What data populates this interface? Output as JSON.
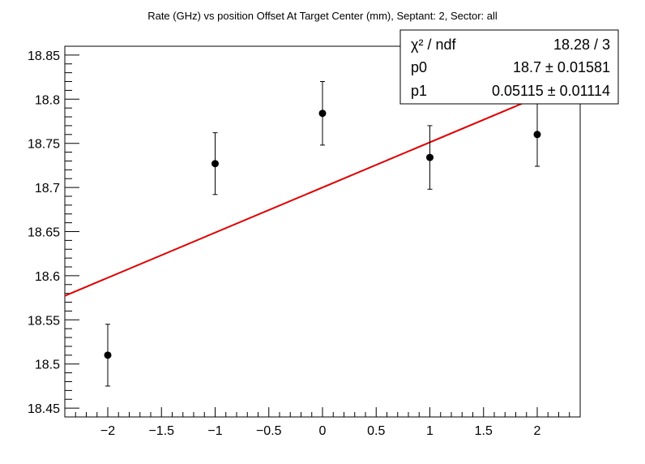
{
  "chart_data": {
    "type": "scatter",
    "title": "Rate (GHz) vs position Offset At Target Center (mm), Septant: 2, Sector: all",
    "xlabel": "",
    "ylabel": "",
    "xlim": [
      -2.4,
      2.4
    ],
    "ylim": [
      18.44,
      18.86
    ],
    "x_ticks": [
      -2,
      -1.5,
      -1,
      -0.5,
      0,
      0.5,
      1,
      1.5,
      2
    ],
    "x_tick_labels": [
      "−2",
      "−1.5",
      "−1",
      "−0.5",
      "0",
      "0.5",
      "1",
      "1.5",
      "2"
    ],
    "y_ticks": [
      18.45,
      18.5,
      18.55,
      18.6,
      18.65,
      18.7,
      18.75,
      18.8,
      18.85
    ],
    "y_tick_labels": [
      "18.45",
      "18.5",
      "18.55",
      "18.6",
      "18.65",
      "18.7",
      "18.75",
      "18.8",
      "18.85"
    ],
    "grid": false,
    "series": [
      {
        "points": [
          {
            "x": -2,
            "y": 18.51,
            "err": 0.035
          },
          {
            "x": -1,
            "y": 18.727,
            "err": 0.035
          },
          {
            "x": 0,
            "y": 18.784,
            "err": 0.036
          },
          {
            "x": 1,
            "y": 18.734,
            "err": 0.036
          },
          {
            "x": 2,
            "y": 18.76,
            "err": 0.036
          }
        ],
        "color": "#000000"
      }
    ],
    "fit": {
      "type": "linear",
      "p0": 18.7,
      "p1": 0.05115,
      "color": "#e00000"
    },
    "stats_box": {
      "position": "top-right",
      "rows": [
        {
          "label": "χ² / ndf",
          "value": "18.28 / 3"
        },
        {
          "label": "p0",
          "value": "18.7  ± 0.01581"
        },
        {
          "label": "p1",
          "value": "0.05115  ± 0.01114"
        }
      ]
    }
  }
}
